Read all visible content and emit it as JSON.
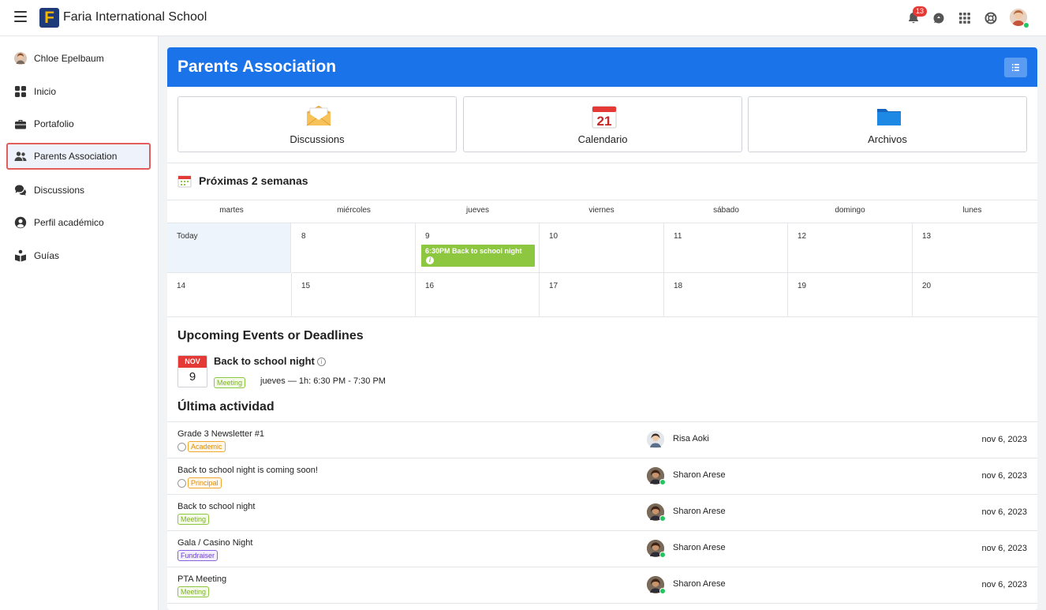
{
  "topbar": {
    "school_name": "Faria International School",
    "logo_letter": "F",
    "notification_count": "13"
  },
  "sidebar": {
    "items": [
      {
        "label": "Chloe Epelbaum",
        "icon": "user-avatar"
      },
      {
        "label": "Inicio",
        "icon": "dashboard-icon"
      },
      {
        "label": "Portafolio",
        "icon": "briefcase-icon"
      },
      {
        "label": "Parents Association",
        "icon": "people-icon",
        "active": true
      },
      {
        "label": "Discussions",
        "icon": "chat-icon"
      },
      {
        "label": "Perfil académico",
        "icon": "user-circle-icon"
      },
      {
        "label": "Guías",
        "icon": "book-reader-icon"
      }
    ]
  },
  "header": {
    "title": "Parents Association"
  },
  "tiles": [
    {
      "label": "Discussions",
      "icon": "envelope-icon"
    },
    {
      "label": "Calendario",
      "icon": "calendar-icon",
      "calendar_day": "21"
    },
    {
      "label": "Archivos",
      "icon": "folder-icon"
    }
  ],
  "calendar": {
    "heading": "Próximas 2 semanas",
    "days": [
      "martes",
      "miércoles",
      "jueves",
      "viernes",
      "sábado",
      "domingo",
      "lunes"
    ],
    "week1": [
      "Today",
      "8",
      "9",
      "10",
      "11",
      "12",
      "13"
    ],
    "week2": [
      "14",
      "15",
      "16",
      "17",
      "18",
      "19",
      "20"
    ],
    "event": {
      "label": "6:30PM Back to school night",
      "info": "i"
    }
  },
  "upcoming": {
    "heading": "Upcoming Events or Deadlines",
    "items": [
      {
        "month": "NOV",
        "day": "9",
        "title": "Back to school night",
        "info": "i",
        "tag": "Meeting",
        "when": "jueves — 1h: 6:30 PM - 7:30 PM"
      }
    ]
  },
  "activity": {
    "heading": "Última actividad",
    "rows": [
      {
        "title": "Grade 3 Newsletter #1",
        "tag": "Academic",
        "tag_type": "academic",
        "bubble": true,
        "author": "Risa Aoki",
        "online": false,
        "date": "nov 6, 2023"
      },
      {
        "title": "Back to school night is coming soon!",
        "tag": "Principal",
        "tag_type": "principal",
        "bubble": true,
        "author": "Sharon Arese",
        "online": true,
        "date": "nov 6, 2023"
      },
      {
        "title": "Back to school night",
        "tag": "Meeting",
        "tag_type": "meeting",
        "bubble": false,
        "author": "Sharon Arese",
        "online": true,
        "date": "nov 6, 2023"
      },
      {
        "title": "Gala / Casino Night",
        "tag": "Fundraiser",
        "tag_type": "fundraiser",
        "bubble": false,
        "author": "Sharon Arese",
        "online": true,
        "date": "nov 6, 2023"
      },
      {
        "title": "PTA Meeting",
        "tag": "Meeting",
        "tag_type": "meeting",
        "bubble": false,
        "author": "Sharon Arese",
        "online": true,
        "date": "nov 6, 2023"
      }
    ]
  },
  "colors": {
    "header_blue": "#1a73e8",
    "event_green": "#8dc63f",
    "active_outline": "#e35d5d",
    "date_red": "#e53935"
  }
}
